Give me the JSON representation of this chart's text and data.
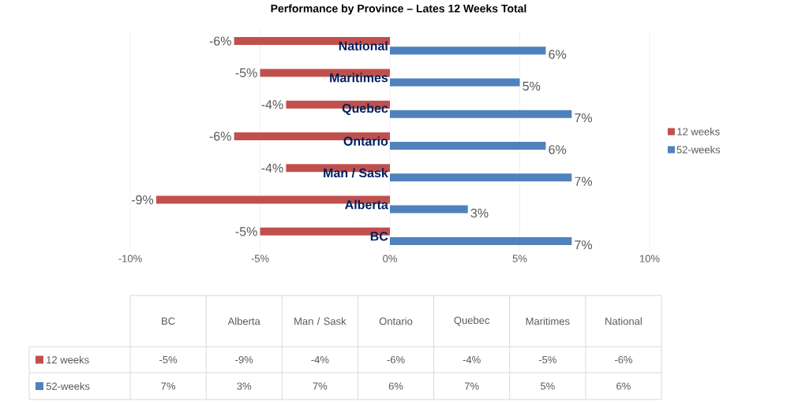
{
  "chart_data": {
    "type": "bar",
    "orientation": "horizontal",
    "title": "Performance by Province – Lates 12 Weeks Total",
    "categories": [
      "National",
      "Maritimes",
      "Quebec",
      "Ontario",
      "Man / Sask",
      "Alberta",
      "BC"
    ],
    "series": [
      {
        "name": "12 weeks",
        "color": "#c0504d",
        "values": [
          -6,
          -5,
          -4,
          -6,
          -4,
          -9,
          -5
        ],
        "value_labels": [
          "-6%",
          "-5%",
          "-4%",
          "-6%",
          "-4%",
          "-9%",
          "-5%"
        ]
      },
      {
        "name": "52-weeks",
        "color": "#4f81bd",
        "values": [
          6,
          5,
          7,
          6,
          7,
          3,
          7
        ],
        "value_labels": [
          "6%",
          "5%",
          "7%",
          "6%",
          "7%",
          "3%",
          "7%"
        ]
      }
    ],
    "xlim": [
      -10,
      10
    ],
    "xticks": [
      {
        "value": -10,
        "label": "-10%"
      },
      {
        "value": -5,
        "label": "-5%"
      },
      {
        "value": 0,
        "label": "0%"
      },
      {
        "value": 5,
        "label": "5%"
      },
      {
        "value": 10,
        "label": "10%"
      }
    ],
    "grid": "x",
    "legend": "right"
  }
}
